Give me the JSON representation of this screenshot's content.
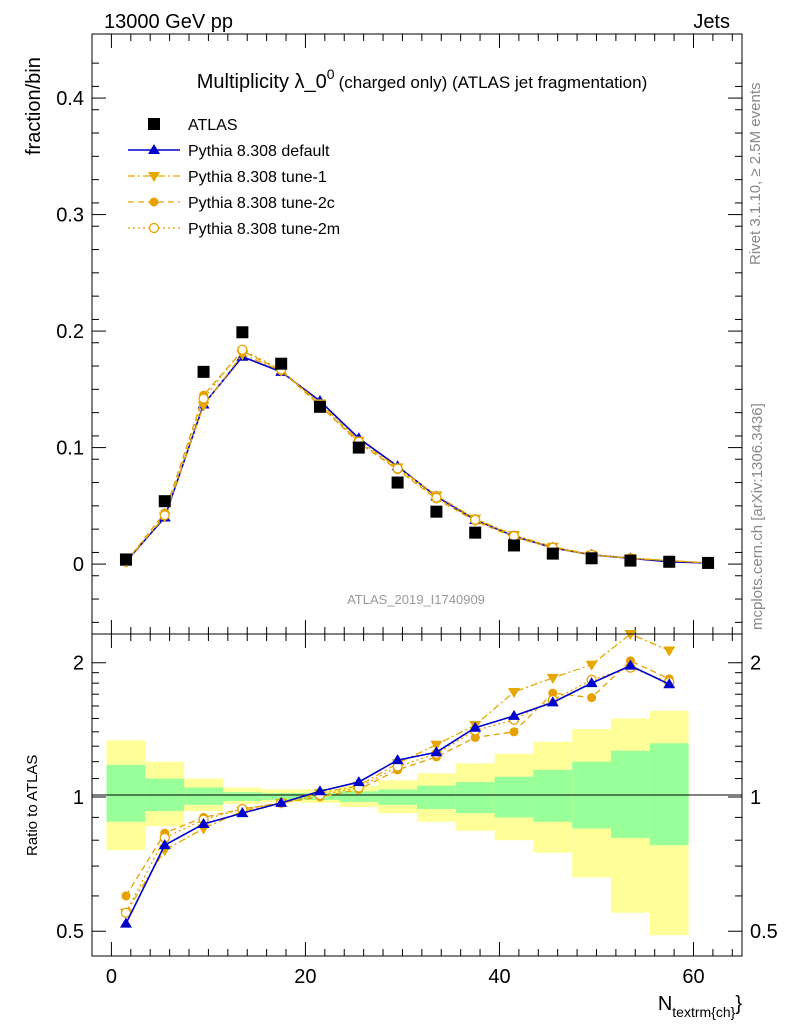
{
  "header": {
    "left": "13000 GeV pp",
    "right": "Jets"
  },
  "side_text": {
    "rivet": "Rivet 3.1.10, ≥ 2.5M events",
    "mcplots": "mcplots.cern.ch [arXiv:1306.3436]"
  },
  "chart_data": [
    {
      "type": "scatter",
      "title_main": "Multiplicity λ_0",
      "title_sup": "0",
      "title_rest": "(charged only) (ATLAS jet fragmentation)",
      "ylabel": "fraction/bin",
      "watermark": "ATLAS_2019_I1740909",
      "legend_placement": "top-left",
      "xlim": [
        -2,
        65
      ],
      "ylim": [
        -0.06,
        0.455
      ],
      "yticks": [
        0,
        0.1,
        0.2,
        0.3,
        0.4
      ],
      "ytick_labels": [
        "0",
        "0.1",
        "0.2",
        "0.3",
        "0.4"
      ],
      "series": [
        {
          "name": "ATLAS",
          "color": "#000000",
          "marker": "square",
          "line": "none",
          "x": [
            1.5,
            5.5,
            9.5,
            13.5,
            17.5,
            21.5,
            25.5,
            29.5,
            33.5,
            37.5,
            41.5,
            45.5,
            49.5,
            53.5,
            57.5,
            61.5
          ],
          "y": [
            0.004,
            0.054,
            0.165,
            0.199,
            0.172,
            0.135,
            0.1,
            0.07,
            0.045,
            0.027,
            0.016,
            0.009,
            0.005,
            0.003,
            0.002,
            0.001
          ]
        },
        {
          "name": "Pythia 8.308 default",
          "color": "#0000cc",
          "marker": "triangle-up",
          "line": "solid",
          "x": [
            1.5,
            5.5,
            9.5,
            13.5,
            17.5,
            21.5,
            25.5,
            29.5,
            33.5,
            37.5,
            41.5,
            45.5,
            49.5,
            53.5,
            57.5,
            61.5
          ],
          "y": [
            0.002,
            0.04,
            0.137,
            0.178,
            0.165,
            0.14,
            0.108,
            0.084,
            0.058,
            0.038,
            0.024,
            0.014,
            0.008,
            0.005,
            0.002,
            0.001
          ]
        },
        {
          "name": "Pythia 8.308 tune-1",
          "color": "#e6a800",
          "marker": "triangle-down",
          "line": "dashdot",
          "x": [
            1.5,
            5.5,
            9.5,
            13.5,
            17.5,
            21.5,
            25.5,
            29.5,
            33.5,
            37.5,
            41.5,
            45.5,
            49.5,
            53.5,
            57.5,
            61.5
          ],
          "y": [
            0.002,
            0.041,
            0.136,
            0.18,
            0.166,
            0.138,
            0.106,
            0.083,
            0.059,
            0.039,
            0.025,
            0.015,
            0.008,
            0.005,
            0.003,
            0.001
          ]
        },
        {
          "name": "Pythia 8.308 tune-2c",
          "color": "#e6a000",
          "marker": "circle",
          "line": "dashed",
          "x": [
            1.5,
            5.5,
            9.5,
            13.5,
            17.5,
            21.5,
            25.5,
            29.5,
            33.5,
            37.5,
            41.5,
            45.5,
            49.5,
            53.5,
            57.5,
            61.5
          ],
          "y": [
            0.002,
            0.044,
            0.145,
            0.183,
            0.166,
            0.136,
            0.104,
            0.081,
            0.056,
            0.037,
            0.023,
            0.014,
            0.008,
            0.005,
            0.003,
            0.001
          ]
        },
        {
          "name": "Pythia 8.308 tune-2m",
          "color": "#e6a000",
          "marker": "open-circle",
          "line": "dotted",
          "x": [
            1.5,
            5.5,
            9.5,
            13.5,
            17.5,
            21.5,
            25.5,
            29.5,
            33.5,
            37.5,
            41.5,
            45.5,
            49.5,
            53.5,
            57.5,
            61.5
          ],
          "y": [
            0.002,
            0.042,
            0.142,
            0.184,
            0.167,
            0.137,
            0.105,
            0.082,
            0.057,
            0.038,
            0.024,
            0.014,
            0.008,
            0.005,
            0.003,
            0.001
          ]
        }
      ]
    },
    {
      "type": "scatter",
      "ylabel": "Ratio to ATLAS",
      "xlabel": "N",
      "xlabel_sub": "textrm{ch}",
      "xlabel_close": "}",
      "xlim": [
        -2,
        65
      ],
      "ylim": [
        0.44,
        2.32
      ],
      "xticks": [
        0,
        20,
        40,
        60
      ],
      "xtick_labels": [
        "0",
        "20",
        "40",
        "60"
      ],
      "yticks": [
        0.5,
        1,
        2
      ],
      "ytick_labels": [
        "0.5",
        "1",
        "2"
      ],
      "bands": {
        "edges": [
          -0.5,
          3.5,
          7.5,
          11.5,
          15.5,
          19.5,
          23.5,
          27.5,
          31.5,
          35.5,
          39.5,
          43.5,
          47.5,
          51.5,
          55.5,
          59.5
        ],
        "green": {
          "color": "#99ff99",
          "lo": [
            0.88,
            0.93,
            0.96,
            0.98,
            0.985,
            0.985,
            0.975,
            0.96,
            0.94,
            0.92,
            0.9,
            0.88,
            0.85,
            0.81,
            0.78
          ],
          "hi": [
            1.18,
            1.1,
            1.05,
            1.025,
            1.02,
            1.02,
            1.03,
            1.04,
            1.06,
            1.08,
            1.11,
            1.15,
            1.2,
            1.27,
            1.32
          ]
        },
        "yellow": {
          "color": "#ffff99",
          "lo": [
            0.76,
            0.86,
            0.93,
            0.965,
            0.975,
            0.97,
            0.95,
            0.92,
            0.88,
            0.84,
            0.8,
            0.75,
            0.66,
            0.55,
            0.49
          ]
        },
        "yellow_hi": [
          1.34,
          1.2,
          1.1,
          1.05,
          1.04,
          1.04,
          1.06,
          1.09,
          1.13,
          1.19,
          1.25,
          1.33,
          1.42,
          1.5,
          1.56
        ]
      },
      "series": [
        {
          "name": "Pythia 8.308 default",
          "color": "#0000cc",
          "marker": "triangle-up",
          "line": "solid",
          "x": [
            1.5,
            5.5,
            9.5,
            13.5,
            17.5,
            21.5,
            25.5,
            29.5,
            33.5,
            37.5,
            41.5,
            45.5,
            49.5,
            53.5,
            57.5
          ],
          "y": [
            0.52,
            0.78,
            0.87,
            0.92,
            0.97,
            1.03,
            1.08,
            1.21,
            1.26,
            1.43,
            1.52,
            1.63,
            1.8,
            1.97,
            1.79
          ]
        },
        {
          "name": "Pythia 8.308 tune-1",
          "color": "#e6a800",
          "marker": "triangle-down",
          "line": "dashdot",
          "x": [
            1.5,
            5.5,
            9.5,
            13.5,
            17.5,
            21.5,
            25.5,
            29.5,
            33.5,
            37.5,
            41.5,
            45.5,
            49.5,
            53.5,
            57.5
          ],
          "y": [
            0.55,
            0.76,
            0.85,
            0.93,
            0.97,
            1.02,
            1.06,
            1.19,
            1.31,
            1.45,
            1.72,
            1.85,
            1.98,
            2.32,
            2.13
          ]
        },
        {
          "name": "Pythia 8.308 tune-2c",
          "color": "#e6a000",
          "marker": "circle",
          "line": "dashed",
          "x": [
            1.5,
            5.5,
            9.5,
            13.5,
            17.5,
            21.5,
            25.5,
            29.5,
            33.5,
            37.5,
            41.5,
            45.5,
            49.5,
            53.5,
            57.5
          ],
          "y": [
            0.6,
            0.83,
            0.9,
            0.94,
            0.97,
            1.0,
            1.04,
            1.15,
            1.23,
            1.36,
            1.4,
            1.71,
            1.67,
            2.02,
            1.84
          ]
        },
        {
          "name": "Pythia 8.308 tune-2m",
          "color": "#e6a000",
          "marker": "open-circle",
          "line": "dotted",
          "x": [
            1.5,
            5.5,
            9.5,
            13.5,
            17.5,
            21.5,
            25.5,
            29.5,
            33.5,
            37.5,
            41.5,
            45.5,
            49.5,
            53.5,
            57.5
          ],
          "y": [
            0.55,
            0.81,
            0.89,
            0.94,
            0.97,
            1.01,
            1.05,
            1.17,
            1.25,
            1.41,
            1.49,
            1.65,
            1.83,
            1.95,
            1.81
          ]
        }
      ]
    }
  ]
}
